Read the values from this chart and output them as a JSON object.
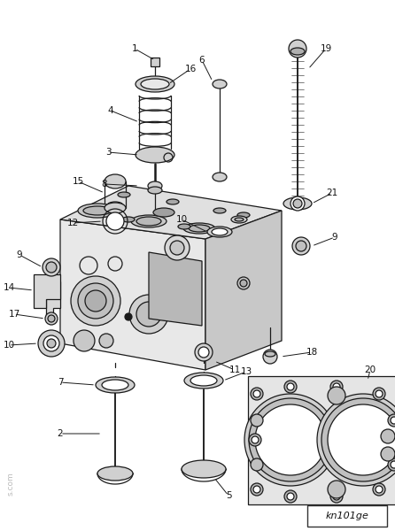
{
  "bg_color": "#ffffff",
  "fig_width": 4.46,
  "fig_height": 6.0,
  "dpi": 100,
  "label_id": "kn101ge",
  "line_color": "#1a1a1a",
  "line_width": 0.9,
  "head_gray": "#e8e8e8",
  "part_gray": "#d0d0d0",
  "dark_gray": "#b0b0b0"
}
